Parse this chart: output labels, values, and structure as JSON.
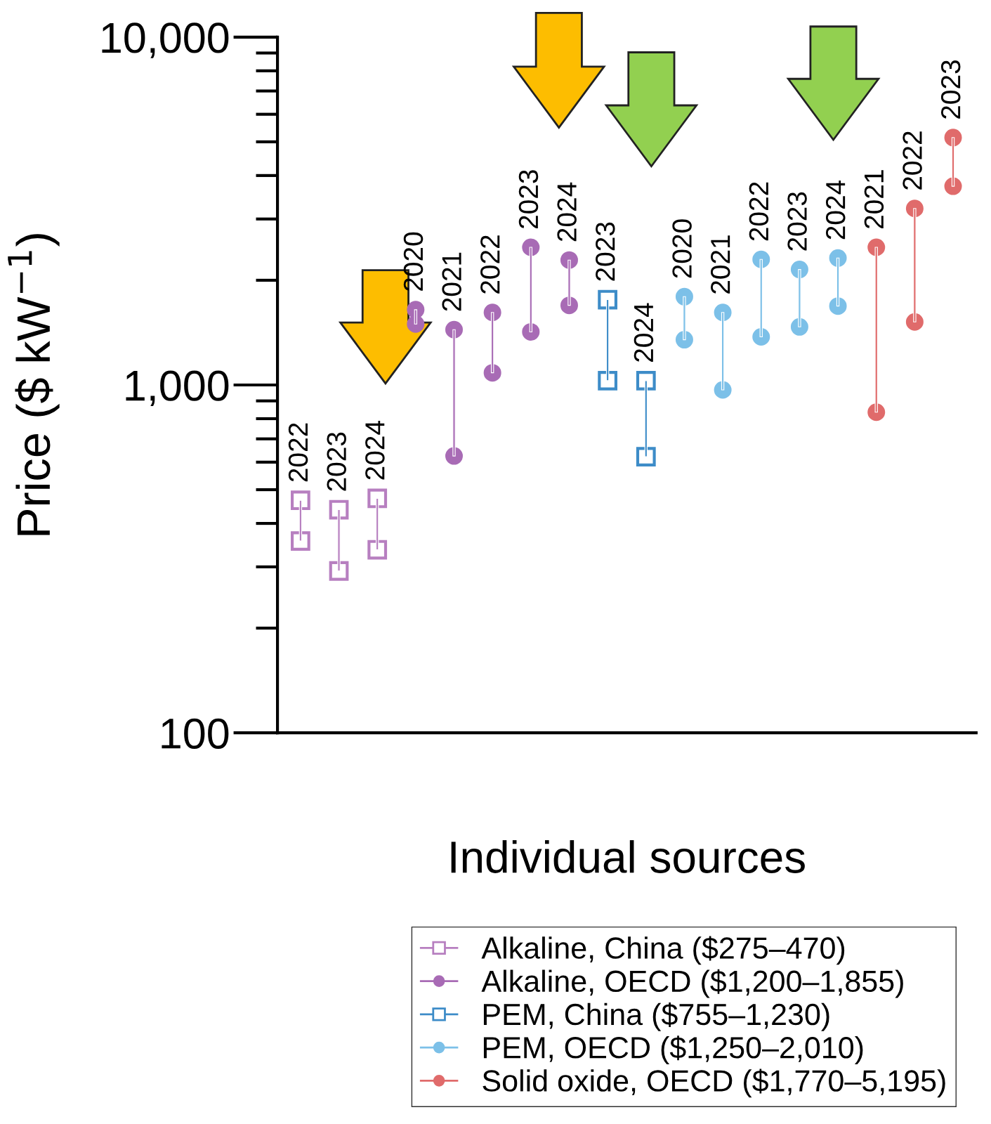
{
  "chart_data": {
    "type": "bar",
    "xlabel": "Individual sources",
    "ylabel": "Price ($ kW$^{−1}$)",
    "categories": [
      "2022",
      "2023",
      "2024",
      "2020",
      "2021",
      "2022",
      "2023",
      "2024",
      "2023",
      "2024",
      "2020",
      "2021",
      "2022",
      "2023",
      "2024",
      "2021",
      "2022",
      "2023"
    ],
    "series": [
      {
        "name": "Alkaline, China ($275–470)",
        "color": "#b77fc0",
        "marker": "square",
        "base": [
          356,
          292,
          336,
          null,
          null,
          null,
          null,
          null,
          null,
          null,
          null,
          null,
          null,
          null,
          null,
          null,
          null,
          null
        ],
        "values": [
          110,
          146,
          136,
          null,
          null,
          null,
          null,
          null,
          null,
          null,
          null,
          null,
          null,
          null,
          null,
          null,
          null,
          null
        ]
      },
      {
        "type": "scatter",
        "color": "#b77fc0",
        "marker": "square",
        "values": [
          466,
          438,
          472,
          null,
          null,
          null,
          null,
          null,
          null,
          null,
          null,
          null,
          null,
          null,
          null,
          null,
          null,
          null
        ]
      },
      {
        "type": "scatter",
        "color": "#b77fc0",
        "marker": "square",
        "values": [
          356,
          292,
          336,
          null,
          null,
          null,
          null,
          null,
          null,
          null,
          null,
          null,
          null,
          null,
          null,
          null,
          null,
          null
        ]
      },
      {
        "name": "Alkaline, OECD ($1,200–1,855)",
        "color": "#a86bb5",
        "marker": "circle",
        "base": [
          null,
          null,
          null,
          1497,
          625,
          1084,
          1421,
          1694,
          null,
          null,
          null,
          null,
          null,
          null,
          null,
          null,
          null,
          null
        ],
        "values": [
          null,
          null,
          null,
          149,
          817,
          532,
          1067,
          592,
          null,
          null,
          null,
          null,
          null,
          null,
          null,
          null,
          null,
          null
        ]
      },
      {
        "type": "scatter",
        "color": "#a86bb5",
        "marker": "circle",
        "values": [
          null,
          null,
          null,
          1646,
          1442,
          1616,
          2488,
          2286,
          null,
          null,
          null,
          null,
          null,
          null,
          null,
          null,
          null,
          null
        ]
      },
      {
        "type": "scatter",
        "color": "#a86bb5",
        "marker": "circle",
        "values": [
          null,
          null,
          null,
          1497,
          625,
          1084,
          1421,
          1694,
          null,
          null,
          null,
          null,
          null,
          null,
          null,
          null,
          null,
          null
        ]
      },
      {
        "name": "PEM, China ($755–1,230)",
        "color": "#3d8cc8",
        "marker": "square",
        "base": [
          null,
          null,
          null,
          null,
          null,
          null,
          null,
          null,
          1029,
          622,
          null,
          null,
          null,
          null,
          null,
          null,
          null,
          null
        ],
        "values": [
          null,
          null,
          null,
          null,
          null,
          null,
          null,
          null,
          730,
          407,
          null,
          null,
          null,
          null,
          null,
          null,
          null,
          null
        ]
      },
      {
        "type": "scatter",
        "color": "#3d8cc8",
        "marker": "square",
        "values": [
          null,
          null,
          null,
          null,
          null,
          null,
          null,
          null,
          1759,
          1029,
          null,
          null,
          null,
          null,
          null,
          null,
          null,
          null
        ]
      },
      {
        "type": "scatter",
        "color": "#3d8cc8",
        "marker": "square",
        "values": [
          null,
          null,
          null,
          null,
          null,
          null,
          null,
          null,
          1029,
          622,
          null,
          null,
          null,
          null,
          null,
          null,
          null,
          null
        ]
      },
      {
        "name": "PEM, OECD ($1,250–2,010)",
        "color": "#7cc0e8",
        "marker": "circle",
        "base": [
          null,
          null,
          null,
          null,
          null,
          null,
          null,
          null,
          null,
          null,
          1349,
          968,
          1375,
          1469,
          1686,
          null,
          null,
          null
        ],
        "values": [
          null,
          null,
          null,
          null,
          null,
          null,
          null,
          null,
          null,
          null,
          445,
          648,
          921,
          679,
          631,
          null,
          null,
          null
        ]
      },
      {
        "type": "scatter",
        "color": "#7cc0e8",
        "marker": "circle",
        "values": [
          null,
          null,
          null,
          null,
          null,
          null,
          null,
          null,
          null,
          null,
          1794,
          1616,
          2296,
          2148,
          2317,
          null,
          null,
          null
        ]
      },
      {
        "type": "scatter",
        "color": "#7cc0e8",
        "marker": "circle",
        "values": [
          null,
          null,
          null,
          null,
          null,
          null,
          null,
          null,
          null,
          null,
          1349,
          968,
          1375,
          1469,
          1686,
          null,
          null,
          null
        ]
      },
      {
        "name": "Solid oxide, OECD ($1,770–5,195)",
        "color": "#e06b6b",
        "marker": "circle",
        "base": [
          null,
          null,
          null,
          null,
          null,
          null,
          null,
          null,
          null,
          null,
          null,
          null,
          null,
          null,
          null,
          835,
          1518,
          3726
        ],
        "values": [
          null,
          null,
          null,
          null,
          null,
          null,
          null,
          null,
          null,
          null,
          null,
          null,
          null,
          null,
          null,
          1653,
          1698,
          1417
        ]
      },
      {
        "type": "scatter",
        "color": "#e06b6b",
        "marker": "circle",
        "values": [
          null,
          null,
          null,
          null,
          null,
          null,
          null,
          null,
          null,
          null,
          null,
          null,
          null,
          null,
          null,
          2488,
          3216,
          5143
        ]
      },
      {
        "type": "scatter",
        "color": "#e06b6b",
        "marker": "circle",
        "values": [
          null,
          null,
          null,
          null,
          null,
          null,
          null,
          null,
          null,
          null,
          null,
          null,
          null,
          null,
          null,
          835,
          1518,
          3726
        ]
      }
    ],
    "log": "y",
    "ylim": [
      100,
      10000
    ],
    "yticks": [
      {
        "value": 100,
        "label": "100"
      },
      {
        "value": 1000,
        "label": "1,000"
      },
      {
        "value": 10000,
        "label": "10,000"
      }
    ],
    "legend": "bottom right",
    "grid": false
  }
}
